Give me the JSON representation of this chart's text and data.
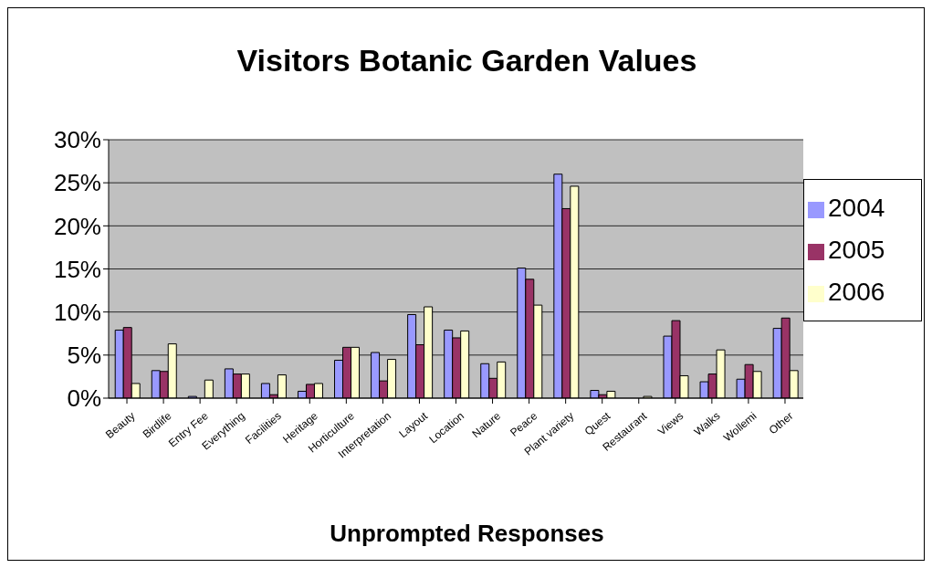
{
  "chart_data": {
    "type": "bar",
    "title": "Visitors Botanic Garden Values",
    "xlabel": "Unprompted Responses",
    "categories": [
      "Beauty",
      "Birdlife",
      "Entry Fee",
      "Everything",
      "Facilities",
      "Heritage",
      "Horticulture",
      "Interpretation",
      "Layout",
      "Location",
      "Nature",
      "Peace",
      "Plant variety",
      "Quest",
      "Restaurant",
      "Views",
      "Walks",
      "Wollemi",
      "Other"
    ],
    "series": [
      {
        "name": "2004",
        "color": "#9999ff",
        "values": [
          7.9,
          3.2,
          0.2,
          3.4,
          1.7,
          0.8,
          4.4,
          5.3,
          9.7,
          7.9,
          4.0,
          15.1,
          26.0,
          0.9,
          0,
          7.2,
          1.9,
          2.2,
          8.1
        ]
      },
      {
        "name": "2005",
        "color": "#993366",
        "values": [
          8.2,
          3.1,
          0,
          2.8,
          0.4,
          1.6,
          5.9,
          2.0,
          6.2,
          7.0,
          2.3,
          13.8,
          22.0,
          0.4,
          0,
          9.0,
          2.8,
          3.9,
          9.3
        ]
      },
      {
        "name": "2006",
        "color": "#ffffcc",
        "values": [
          1.7,
          6.3,
          2.1,
          2.8,
          2.7,
          1.7,
          5.9,
          4.5,
          10.6,
          7.8,
          4.2,
          10.8,
          24.6,
          0.8,
          0.2,
          2.6,
          5.6,
          3.1,
          3.2
        ]
      }
    ],
    "ylim": [
      0,
      30
    ],
    "yticks": [
      {
        "value": 0,
        "label": "0%"
      },
      {
        "value": 5,
        "label": "5%"
      },
      {
        "value": 10,
        "label": "10%"
      },
      {
        "value": 15,
        "label": "15%"
      },
      {
        "value": 20,
        "label": "20%"
      },
      {
        "value": 25,
        "label": "25%"
      },
      {
        "value": 30,
        "label": "30%"
      }
    ],
    "grid": "y",
    "legend": "right"
  }
}
